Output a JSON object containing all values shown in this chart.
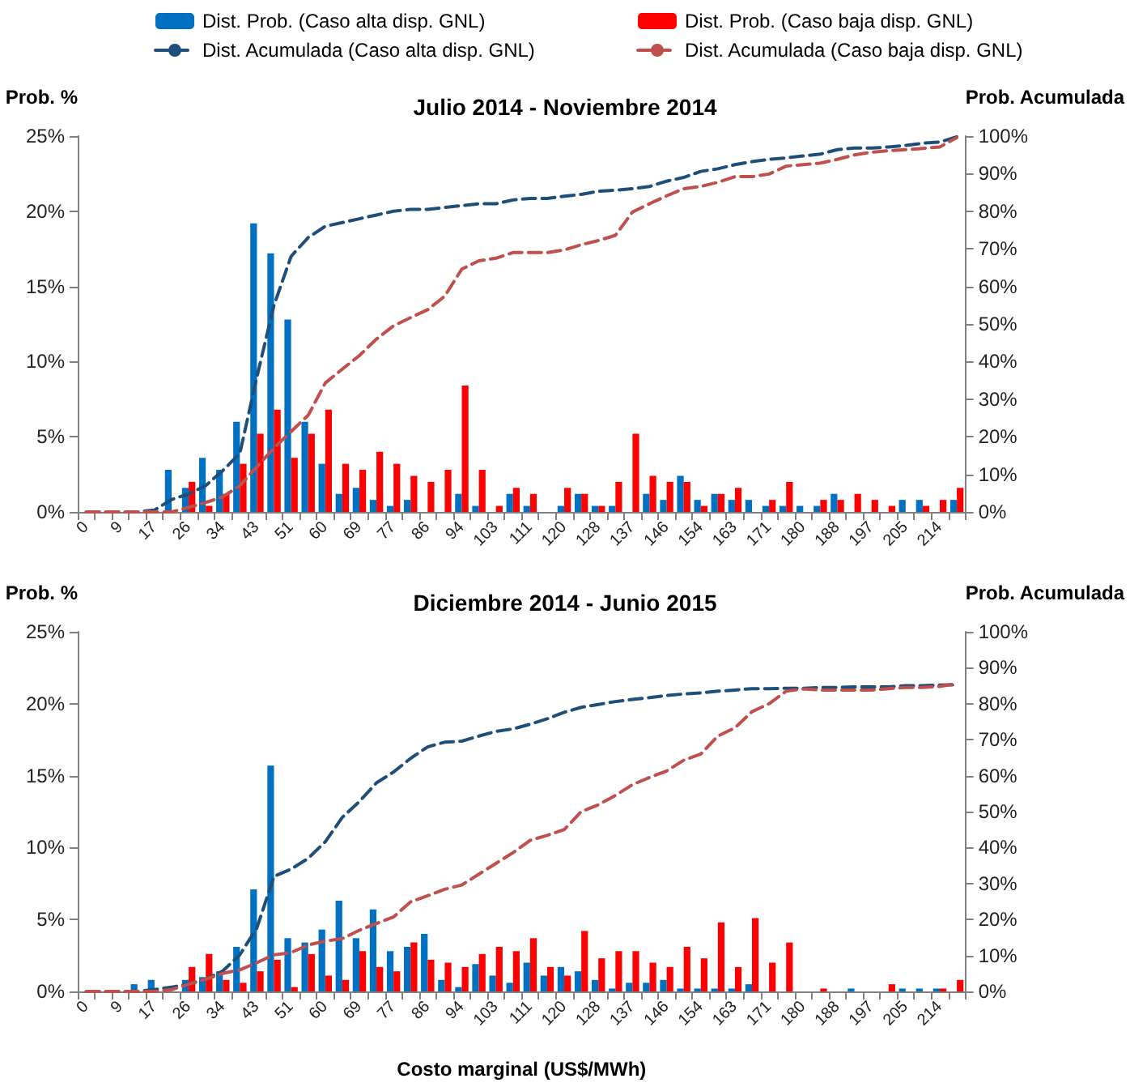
{
  "chart_data": [
    {
      "type": "bar",
      "title": "Julio 2014 - Noviembre 2014",
      "ylabel": "Prob. %",
      "y2label": "Prob. Acumulada",
      "categories": [
        "0",
        null,
        "9",
        null,
        "17",
        null,
        "26",
        null,
        "34",
        null,
        "43",
        null,
        "51",
        null,
        "60",
        null,
        "69",
        null,
        "77",
        null,
        "86",
        null,
        "94",
        null,
        "103",
        null,
        "111",
        null,
        "120",
        null,
        "128",
        null,
        "137",
        null,
        "146",
        null,
        "154",
        null,
        "163",
        null,
        "171",
        null,
        "180",
        null,
        "188",
        null,
        "197",
        null,
        "205",
        null,
        "214",
        null
      ],
      "series": [
        {
          "name": "Dist. Prob. (Caso alta disp. GNL)",
          "color": "#0070c0",
          "values": [
            0,
            0,
            0,
            0,
            null,
            2.8,
            1.6,
            3.6,
            2.8,
            6.0,
            19.2,
            17.2,
            12.8,
            6.0,
            3.2,
            1.2,
            1.6,
            0.8,
            0.4,
            0.8,
            0,
            0,
            1.2,
            0.4,
            0,
            1.2,
            0.4,
            0,
            0.4,
            1.2,
            0.4,
            0.4,
            0,
            1.2,
            0.8,
            2.4,
            0.8,
            1.2,
            0.8,
            0.8,
            0.4,
            0.4,
            0.4,
            0.4,
            1.2,
            0,
            0,
            0,
            0.8,
            0.8,
            0,
            0.8
          ]
        },
        {
          "name": "Dist. Prob. (Caso baja disp. GNL)",
          "color": "#ff0000",
          "values": [
            0,
            0,
            0,
            0,
            0,
            0,
            2.0,
            0.4,
            1.2,
            3.2,
            5.2,
            6.8,
            3.6,
            5.2,
            6.8,
            3.2,
            2.8,
            4.0,
            3.2,
            2.4,
            2.0,
            2.8,
            8.4,
            2.8,
            0.4,
            1.6,
            1.2,
            0,
            1.6,
            1.2,
            0.4,
            2.0,
            5.2,
            2.4,
            2.0,
            2.0,
            0.4,
            1.2,
            1.6,
            0,
            0.8,
            2.0,
            0,
            0.8,
            0.8,
            1.2,
            0.8,
            0.4,
            0,
            0.4,
            0.8,
            1.6
          ]
        },
        {
          "name": "Dist. Acumulada (Caso alta disp. GNL)",
          "type": "line",
          "axis": "y2",
          "color": "#1f4e79",
          "values": [
            0,
            0,
            0,
            0,
            0.5,
            3.3,
            4.8,
            7,
            11,
            15.6,
            36,
            55,
            68,
            73,
            76,
            77,
            78,
            79,
            80,
            80.5,
            80.5,
            81,
            81.5,
            82,
            82,
            83,
            83.4,
            83.4,
            84,
            84.5,
            85.3,
            85.6,
            86,
            86.6,
            88,
            89,
            90.6,
            91.3,
            92.4,
            93.2,
            93.8,
            94.2,
            94.7,
            95.2,
            96.4,
            96.8,
            96.8,
            97.1,
            97.5,
            98.1,
            98.4,
            99.8
          ]
        },
        {
          "name": "Dist. Acumulada (Caso baja disp. GNL)",
          "type": "line",
          "axis": "y2",
          "color": "#c0504d",
          "values": [
            0,
            0,
            0,
            0,
            0,
            0,
            1.2,
            2.5,
            4,
            7,
            12,
            17,
            21.4,
            25.7,
            34.3,
            38,
            41.6,
            46,
            49.5,
            51.7,
            53.8,
            57.4,
            64.6,
            66.8,
            67.5,
            69,
            69,
            69,
            69.7,
            71.1,
            72.2,
            73.6,
            79.8,
            82,
            84.1,
            86,
            86.6,
            87.7,
            89.2,
            89.2,
            89.9,
            92,
            92.4,
            92.8,
            93.8,
            95,
            95.7,
            96.1,
            96.4,
            96.7,
            97.1,
            99.6
          ]
        }
      ],
      "ylim": [
        0,
        25
      ],
      "yticks": [
        {
          "value": 0,
          "label": "0%"
        },
        {
          "value": 5,
          "label": "5%"
        },
        {
          "value": 10,
          "label": "10%"
        },
        {
          "value": 15,
          "label": "15%"
        },
        {
          "value": 20,
          "label": "20%"
        },
        {
          "value": 25,
          "label": "25%"
        }
      ],
      "y2lim": [
        0,
        100
      ],
      "y2ticks": [
        {
          "value": 0,
          "label": "0%"
        },
        {
          "value": 10,
          "label": "10%"
        },
        {
          "value": 20,
          "label": "20%"
        },
        {
          "value": 30,
          "label": "30%"
        },
        {
          "value": 40,
          "label": "40%"
        },
        {
          "value": 50,
          "label": "50%"
        },
        {
          "value": 60,
          "label": "60%"
        },
        {
          "value": 70,
          "label": "70%"
        },
        {
          "value": 80,
          "label": "80%"
        },
        {
          "value": 90,
          "label": "90%"
        },
        {
          "value": 100,
          "label": "100%"
        }
      ],
      "legend": "top",
      "line_style": "dashed",
      "marker": "none"
    },
    {
      "type": "bar",
      "title": "Diciembre 2014 - Junio 2015",
      "ylabel": "Prob. %",
      "y2label": "Prob. Acumulada",
      "xlabel": "Costo marginal (US$/MWh)",
      "categories": [
        "0",
        null,
        "9",
        null,
        "17",
        null,
        "26",
        null,
        "34",
        null,
        "43",
        null,
        "51",
        null,
        "60",
        null,
        "69",
        null,
        "77",
        null,
        "86",
        null,
        "94",
        null,
        "103",
        null,
        "111",
        null,
        "120",
        null,
        "128",
        null,
        "137",
        null,
        "146",
        null,
        "154",
        null,
        "163",
        null,
        "171",
        null,
        "180",
        null,
        "188",
        null,
        "197",
        null,
        "205",
        null,
        "214",
        null
      ],
      "series": [
        {
          "color": "#0070c0",
          "values": [
            0,
            0,
            0,
            0.5,
            0.8,
            null,
            0.8,
            1.0,
            1.4,
            3.1,
            7.1,
            15.7,
            3.7,
            3.4,
            4.3,
            6.3,
            3.7,
            5.7,
            2.8,
            3.1,
            4.0,
            0.8,
            0.3,
            1.9,
            1.1,
            0.6,
            2.0,
            1.1,
            1.7,
            1.4,
            0.8,
            0.2,
            0.6,
            0.6,
            0.8,
            0.2,
            0.2,
            0.2,
            0.2,
            0.5,
            0,
            0,
            0,
            0,
            0,
            0.2,
            0,
            0,
            0.2,
            0.2,
            0.2,
            0
          ]
        },
        {
          "color": "#ff0000",
          "values": [
            0,
            0,
            0,
            0,
            null,
            null,
            1.7,
            2.6,
            0.8,
            0.6,
            1.4,
            2.2,
            0.3,
            2.6,
            1.1,
            0.8,
            2.8,
            1.7,
            1.4,
            3.4,
            2.2,
            2.0,
            1.7,
            2.6,
            3.1,
            2.8,
            3.7,
            1.7,
            1.1,
            4.2,
            2.3,
            2.8,
            2.8,
            2.0,
            1.7,
            3.1,
            2.3,
            4.8,
            1.7,
            5.1,
            2.0,
            3.4,
            0,
            0.2,
            0,
            0,
            0,
            0.5,
            0,
            0,
            0.2,
            0.8
          ]
        },
        {
          "type": "line",
          "axis": "y2",
          "color": "#1f4e79",
          "values": [
            0,
            0,
            0,
            0,
            0.5,
            1.2,
            2,
            3.4,
            5.7,
            10.2,
            17.7,
            32,
            34,
            37,
            41.6,
            48.4,
            52.8,
            58,
            61,
            64.8,
            68,
            69.3,
            69.6,
            71,
            72.3,
            73,
            74.3,
            75.8,
            77.6,
            79,
            79.8,
            80.6,
            81.2,
            81.7,
            82.3,
            82.7,
            83,
            83.5,
            83.8,
            84.2,
            84.2,
            84.3,
            84.3,
            84.5,
            84.5,
            84.7,
            84.7,
            84.7,
            85,
            85,
            85.2,
            85.3
          ]
        },
        {
          "type": "line",
          "axis": "y2",
          "color": "#c0504d",
          "values": [
            0,
            0,
            0,
            0,
            0,
            0.5,
            2,
            3.4,
            5,
            6,
            8,
            10.2,
            10.8,
            12.9,
            14,
            14.7,
            17,
            18.9,
            20.7,
            24.9,
            26.6,
            28.4,
            29.6,
            32.6,
            35.6,
            38.6,
            42,
            43.4,
            45,
            50,
            51.9,
            54.5,
            57.5,
            59.5,
            61.3,
            64.3,
            66,
            71,
            73.3,
            77.8,
            80,
            83.5,
            84.1,
            83.8,
            83.8,
            83.8,
            83.8,
            84.2,
            84.5,
            84.5,
            84.8,
            85.6
          ]
        }
      ],
      "ylim": [
        0,
        25
      ],
      "yticks": [
        {
          "value": 0,
          "label": "0%"
        },
        {
          "value": 5,
          "label": "5%"
        },
        {
          "value": 10,
          "label": "10%"
        },
        {
          "value": 15,
          "label": "15%"
        },
        {
          "value": 20,
          "label": "20%"
        },
        {
          "value": 25,
          "label": "25%"
        }
      ],
      "y2lim": [
        0,
        100
      ],
      "y2ticks": [
        {
          "value": 0,
          "label": "0%"
        },
        {
          "value": 10,
          "label": "10%"
        },
        {
          "value": 20,
          "label": "20%"
        },
        {
          "value": 30,
          "label": "30%"
        },
        {
          "value": 40,
          "label": "40%"
        },
        {
          "value": 50,
          "label": "50%"
        },
        {
          "value": 60,
          "label": "60%"
        },
        {
          "value": 70,
          "label": "70%"
        },
        {
          "value": 80,
          "label": "80%"
        },
        {
          "value": 90,
          "label": "90%"
        },
        {
          "value": 100,
          "label": "100%"
        }
      ],
      "line_style": "dashed",
      "marker": "none"
    }
  ]
}
